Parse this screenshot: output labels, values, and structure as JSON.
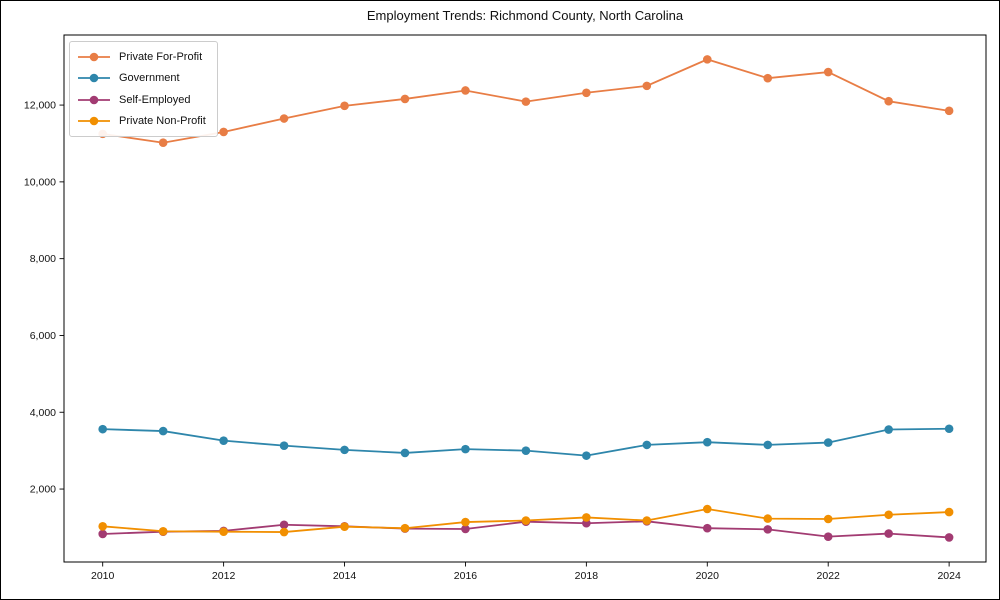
{
  "chart_data": {
    "type": "line",
    "title": "Employment Trends: Richmond County, North Carolina",
    "xlabel": "",
    "ylabel": "",
    "x": [
      2010,
      2011,
      2012,
      2013,
      2014,
      2015,
      2016,
      2017,
      2018,
      2019,
      2020,
      2021,
      2022,
      2023,
      2024
    ],
    "x_ticks": [
      2010,
      2012,
      2014,
      2016,
      2018,
      2020,
      2022,
      2024
    ],
    "x_tick_labels": [
      "2010",
      "2012",
      "2014",
      "2016",
      "2018",
      "2020",
      "2022",
      "2024"
    ],
    "y_ticks": [
      2000,
      4000,
      6000,
      8000,
      10000,
      12000
    ],
    "y_tick_labels": [
      "2,000",
      "4,000",
      "6,000",
      "8,000",
      "10,000",
      "12,000"
    ],
    "xlim": [
      2009.36,
      2024.61
    ],
    "ylim": [
      100,
      13825
    ],
    "grid": false,
    "legend_position": "upper left",
    "marker": "circle",
    "series": [
      {
        "name": "Private For-Profit",
        "color": "#E87D45",
        "values": [
          11250,
          11020,
          11300,
          11650,
          11980,
          12160,
          12380,
          12090,
          12320,
          12500,
          13190,
          12700,
          12860,
          12100,
          11850
        ]
      },
      {
        "name": "Government",
        "color": "#2E86AB",
        "values": [
          3560,
          3510,
          3260,
          3130,
          3020,
          2940,
          3040,
          3000,
          2870,
          3150,
          3220,
          3150,
          3210,
          3550,
          3570
        ]
      },
      {
        "name": "Self-Employed",
        "color": "#A23B72",
        "values": [
          830,
          890,
          910,
          1070,
          1030,
          970,
          960,
          1150,
          1110,
          1160,
          980,
          950,
          760,
          840,
          740
        ]
      },
      {
        "name": "Private Non-Profit",
        "color": "#F18F01",
        "values": [
          1030,
          900,
          890,
          880,
          1020,
          980,
          1140,
          1180,
          1260,
          1180,
          1480,
          1230,
          1220,
          1330,
          1400
        ]
      }
    ]
  }
}
